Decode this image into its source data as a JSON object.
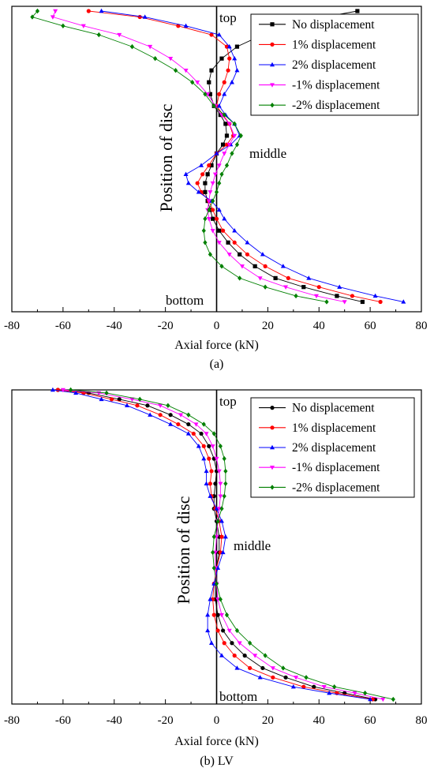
{
  "chart_data": [
    {
      "type": "line",
      "caption": "(a)",
      "xlabel": "Axial force (kN)",
      "ylabel": "Position of disc",
      "xlim": [
        -80,
        80
      ],
      "xticks": [
        -80,
        -60,
        -40,
        -20,
        0,
        20,
        40,
        60,
        80
      ],
      "annotations": {
        "top": "top",
        "middle": "middle",
        "bottom": "bottom"
      },
      "legend_position": "top-right",
      "y_axis_note": "disc position normalized 0 (bottom) to 1 (top)",
      "series": [
        {
          "name": "No displacement",
          "color": "#000000",
          "marker": "square",
          "x": [
            57,
            47,
            34,
            23,
            15,
            9,
            4.5,
            1,
            -1.5,
            -2.5,
            -3.5,
            -4.5,
            -4.5,
            -3.5,
            -2,
            0,
            2.5,
            4,
            3.5,
            1.5,
            -1,
            -2.5,
            -3,
            -2,
            2,
            8,
            18,
            31,
            42,
            55
          ],
          "y": [
            0.02,
            0.04,
            0.07,
            0.1,
            0.14,
            0.18,
            0.22,
            0.26,
            0.3,
            0.33,
            0.36,
            0.39,
            0.42,
            0.45,
            0.48,
            0.52,
            0.55,
            0.58,
            0.62,
            0.65,
            0.68,
            0.72,
            0.76,
            0.8,
            0.84,
            0.88,
            0.92,
            0.95,
            0.98,
            1.0
          ]
        },
        {
          "name": "1% displacement",
          "color": "#ff0000",
          "marker": "circle",
          "x": [
            64,
            53,
            40,
            28,
            19,
            12,
            7,
            2.5,
            0,
            -1.5,
            -3,
            -6,
            -7.5,
            -5.5,
            -3,
            0,
            4,
            6.5,
            5,
            2.5,
            0,
            1,
            3,
            4.5,
            5,
            4,
            -2,
            -15,
            -30,
            -50
          ],
          "y": [
            0.02,
            0.04,
            0.07,
            0.1,
            0.14,
            0.18,
            0.22,
            0.26,
            0.3,
            0.33,
            0.36,
            0.39,
            0.42,
            0.45,
            0.48,
            0.52,
            0.55,
            0.58,
            0.62,
            0.65,
            0.68,
            0.72,
            0.76,
            0.8,
            0.84,
            0.88,
            0.92,
            0.95,
            0.98,
            1.0
          ]
        },
        {
          "name": "2% displacement",
          "color": "#0000ff",
          "marker": "triangle-up",
          "x": [
            73,
            62,
            48,
            36,
            26,
            18,
            12,
            7,
            3,
            1,
            -2,
            -7,
            -11,
            -12,
            -6,
            0,
            5.5,
            9,
            7,
            3.5,
            1,
            3,
            6,
            8,
            7,
            5,
            1,
            -12,
            -28,
            -45
          ],
          "y": [
            0.02,
            0.04,
            0.07,
            0.1,
            0.14,
            0.18,
            0.22,
            0.26,
            0.3,
            0.33,
            0.36,
            0.39,
            0.42,
            0.45,
            0.48,
            0.52,
            0.55,
            0.58,
            0.62,
            0.65,
            0.68,
            0.72,
            0.76,
            0.8,
            0.84,
            0.88,
            0.92,
            0.95,
            0.98,
            1.0
          ]
        },
        {
          "name": "-1% displacement",
          "color": "#ff00ff",
          "marker": "triangle-down",
          "x": [
            50,
            39,
            27,
            17,
            10,
            5,
            1,
            -1.5,
            -3,
            -3.5,
            -3,
            -2.5,
            -1.5,
            -0.5,
            1,
            3,
            5,
            7,
            5,
            2,
            -0.5,
            -3.5,
            -7.5,
            -12,
            -18,
            -26,
            -38,
            -52,
            -64,
            -63
          ],
          "y": [
            0.02,
            0.04,
            0.07,
            0.1,
            0.14,
            0.18,
            0.22,
            0.26,
            0.3,
            0.33,
            0.36,
            0.39,
            0.42,
            0.45,
            0.48,
            0.52,
            0.55,
            0.58,
            0.62,
            0.65,
            0.68,
            0.72,
            0.76,
            0.8,
            0.84,
            0.88,
            0.92,
            0.95,
            0.98,
            1.0
          ]
        },
        {
          "name": "-2% displacement",
          "color": "#008000",
          "marker": "diamond",
          "x": [
            43,
            31,
            19,
            9,
            2,
            -2.5,
            -4.5,
            -5,
            -4.5,
            -3,
            -1.5,
            0,
            1,
            2,
            4,
            6,
            8,
            9.5,
            7,
            3,
            -1,
            -4.5,
            -9.5,
            -16,
            -24,
            -33,
            -46,
            -60,
            -72,
            -70
          ],
          "y": [
            0.02,
            0.04,
            0.07,
            0.1,
            0.14,
            0.18,
            0.22,
            0.26,
            0.3,
            0.33,
            0.36,
            0.39,
            0.42,
            0.45,
            0.48,
            0.52,
            0.55,
            0.58,
            0.62,
            0.65,
            0.68,
            0.72,
            0.76,
            0.8,
            0.84,
            0.88,
            0.92,
            0.95,
            0.98,
            1.0
          ]
        }
      ]
    },
    {
      "type": "line",
      "caption": "(b) LV",
      "xlabel": "Axial force (kN)",
      "ylabel": "Position of disc",
      "xlim": [
        -80,
        80
      ],
      "xticks": [
        -80,
        -60,
        -40,
        -20,
        0,
        20,
        40,
        60,
        80
      ],
      "annotations": {
        "top": "top",
        "middle": "middle",
        "bottom": "bottom"
      },
      "legend_position": "top-right",
      "y_axis_note": "disc position normalized 0 (bottom) to 1 (top)",
      "series": [
        {
          "name": "No displacement",
          "color": "#000000",
          "marker": "circle",
          "x": [
            62,
            50,
            38,
            27,
            18,
            11,
            6,
            2.5,
            0.5,
            -0.5,
            -0.5,
            0,
            1,
            1,
            0,
            -1,
            -1,
            -0.5,
            0,
            -1,
            -3,
            -6,
            -11,
            -18,
            -27,
            -38,
            -50,
            -62
          ],
          "y": [
            0.01,
            0.03,
            0.05,
            0.08,
            0.11,
            0.15,
            0.19,
            0.23,
            0.28,
            0.33,
            0.38,
            0.43,
            0.48,
            0.53,
            0.58,
            0.62,
            0.66,
            0.7,
            0.74,
            0.78,
            0.82,
            0.86,
            0.89,
            0.92,
            0.95,
            0.97,
            0.99,
            1.0
          ]
        },
        {
          "name": "1% displacement",
          "color": "#ff0000",
          "marker": "circle",
          "x": [
            61,
            47,
            34,
            22,
            13,
            7,
            3,
            0.5,
            -1,
            -1.5,
            -1,
            0,
            1.5,
            2,
            1,
            -0.5,
            -2,
            -2.5,
            -2,
            -3,
            -5,
            -9,
            -15,
            -22,
            -31,
            -41,
            -52,
            -62
          ],
          "y": [
            0.01,
            0.03,
            0.05,
            0.08,
            0.11,
            0.15,
            0.19,
            0.23,
            0.28,
            0.33,
            0.38,
            0.43,
            0.48,
            0.53,
            0.58,
            0.62,
            0.66,
            0.7,
            0.74,
            0.78,
            0.82,
            0.86,
            0.89,
            0.92,
            0.95,
            0.97,
            0.99,
            1.0
          ]
        },
        {
          "name": "2% displacement",
          "color": "#0000ff",
          "marker": "triangle-up",
          "x": [
            60,
            44,
            30,
            17,
            8,
            2,
            -2,
            -3.5,
            -3.5,
            -2.5,
            -1,
            0.5,
            2.5,
            3.5,
            2,
            0,
            -2.5,
            -4,
            -4,
            -5,
            -7,
            -11,
            -18,
            -26,
            -35,
            -45,
            -55,
            -64
          ],
          "y": [
            0.01,
            0.03,
            0.05,
            0.08,
            0.11,
            0.15,
            0.19,
            0.23,
            0.28,
            0.33,
            0.38,
            0.43,
            0.48,
            0.53,
            0.58,
            0.62,
            0.66,
            0.7,
            0.74,
            0.78,
            0.82,
            0.86,
            0.89,
            0.92,
            0.95,
            0.97,
            0.99,
            1.0
          ]
        },
        {
          "name": "-1% displacement",
          "color": "#ff00ff",
          "marker": "triangle-down",
          "x": [
            65,
            54,
            42,
            31,
            22,
            15,
            9,
            5,
            2,
            0.5,
            0,
            -0.5,
            -0.5,
            0,
            0.5,
            1,
            1.5,
            1.5,
            1,
            0,
            -1.5,
            -4,
            -8,
            -14,
            -22,
            -33,
            -46,
            -60
          ],
          "y": [
            0.01,
            0.03,
            0.05,
            0.08,
            0.11,
            0.15,
            0.19,
            0.23,
            0.28,
            0.33,
            0.38,
            0.43,
            0.48,
            0.53,
            0.58,
            0.62,
            0.66,
            0.7,
            0.74,
            0.78,
            0.82,
            0.86,
            0.89,
            0.92,
            0.95,
            0.97,
            0.99,
            1.0
          ]
        },
        {
          "name": "-2% displacement",
          "color": "#008000",
          "marker": "diamond",
          "x": [
            69,
            58,
            46,
            35,
            26,
            19,
            13,
            8,
            4,
            1.5,
            0,
            -1,
            -1.5,
            -1,
            0.5,
            2,
            3,
            3.5,
            3.5,
            3,
            1.5,
            -1,
            -5,
            -11,
            -19,
            -30,
            -43,
            -57
          ],
          "y": [
            0.01,
            0.03,
            0.05,
            0.08,
            0.11,
            0.15,
            0.19,
            0.23,
            0.28,
            0.33,
            0.38,
            0.43,
            0.48,
            0.53,
            0.58,
            0.62,
            0.66,
            0.7,
            0.74,
            0.78,
            0.82,
            0.86,
            0.89,
            0.92,
            0.95,
            0.97,
            0.99,
            1.0
          ]
        }
      ]
    }
  ]
}
